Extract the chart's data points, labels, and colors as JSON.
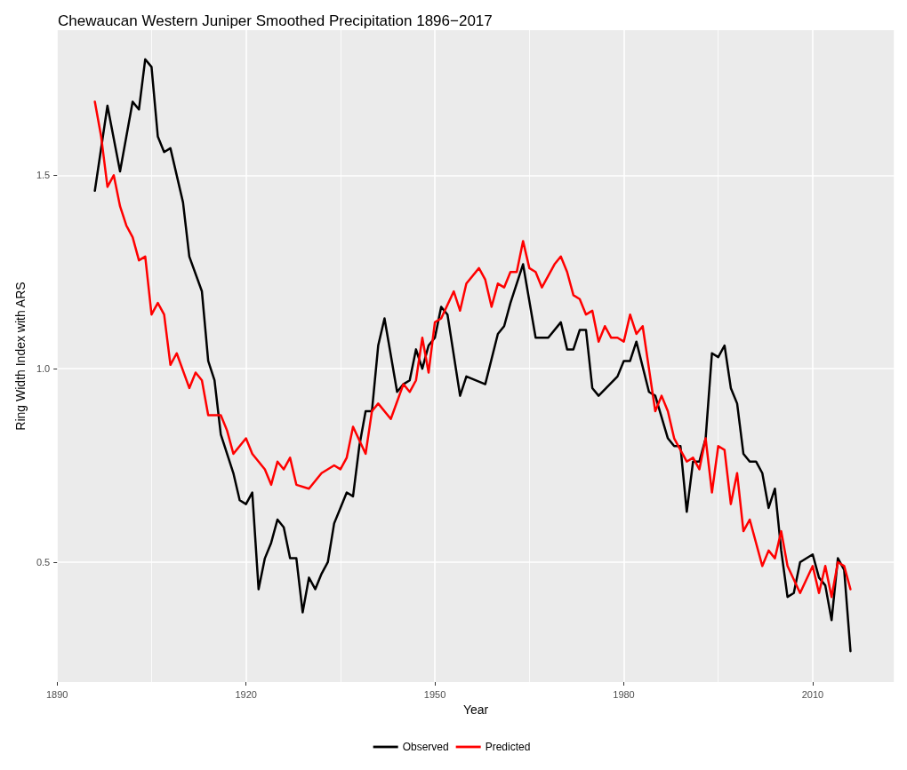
{
  "chart_data": {
    "type": "line",
    "title": "Chewaucan Western Juniper Smoothed Precipitation 1896−2017",
    "xlabel": "Year",
    "ylabel": "Ring Width Index with ARS",
    "xlim": [
      1890,
      2023
    ],
    "xticks": [
      1890,
      1920,
      1950,
      1980,
      2010
    ],
    "ylim": [
      0.19,
      1.875
    ],
    "yticks": [
      {
        "value": 0.5,
        "label": "0.5"
      },
      {
        "value": 1.0,
        "label": "1.0"
      },
      {
        "value": 1.5,
        "label": "1.5"
      }
    ],
    "grid": true,
    "legend": "bottom",
    "marker": "none",
    "line_style": "solid",
    "series": [
      {
        "name": "Observed",
        "color": "#000000",
        "x": [
          1896,
          1898,
          1900,
          1902,
          1903,
          1904,
          1905,
          1906,
          1907,
          1908,
          1910,
          1911,
          1913,
          1914,
          1915,
          1916,
          1918,
          1919,
          1920,
          1921,
          1922,
          1923,
          1924,
          1925,
          1926,
          1927,
          1928,
          1929,
          1930,
          1931,
          1932,
          1933,
          1934,
          1935,
          1936,
          1937,
          1938,
          1939,
          1940,
          1941,
          1942,
          1944,
          1945,
          1946,
          1947,
          1948,
          1949,
          1950,
          1951,
          1952,
          1954,
          1955,
          1958,
          1960,
          1961,
          1962,
          1964,
          1966,
          1968,
          1970,
          1971,
          1972,
          1973,
          1974,
          1975,
          1976,
          1979,
          1980,
          1981,
          1982,
          1984,
          1985,
          1987,
          1988,
          1989,
          1990,
          1991,
          1992,
          1993,
          1994,
          1995,
          1996,
          1997,
          1998,
          1999,
          2000,
          2001,
          2002,
          2003,
          2004,
          2005,
          2006,
          2007,
          2008,
          2010,
          2011,
          2012,
          2013,
          2014,
          2015,
          2016
        ],
        "values": [
          1.46,
          1.68,
          1.51,
          1.69,
          1.67,
          1.8,
          1.78,
          1.6,
          1.56,
          1.57,
          1.43,
          1.29,
          1.2,
          1.02,
          0.97,
          0.83,
          0.73,
          0.66,
          0.65,
          0.68,
          0.43,
          0.51,
          0.55,
          0.61,
          0.59,
          0.51,
          0.51,
          0.37,
          0.46,
          0.43,
          0.47,
          0.5,
          0.6,
          0.64,
          0.68,
          0.67,
          0.8,
          0.89,
          0.89,
          1.06,
          1.13,
          0.94,
          0.96,
          0.97,
          1.05,
          1.0,
          1.06,
          1.08,
          1.16,
          1.14,
          0.93,
          0.98,
          0.96,
          1.09,
          1.11,
          1.17,
          1.27,
          1.08,
          1.08,
          1.12,
          1.05,
          1.05,
          1.1,
          1.1,
          0.95,
          0.93,
          0.98,
          1.02,
          1.02,
          1.07,
          0.94,
          0.93,
          0.82,
          0.8,
          0.8,
          0.63,
          0.76,
          0.76,
          0.82,
          1.04,
          1.03,
          1.06,
          0.95,
          0.91,
          0.78,
          0.76,
          0.76,
          0.73,
          0.64,
          0.69,
          0.53,
          0.41,
          0.42,
          0.5,
          0.52,
          0.46,
          0.44,
          0.35,
          0.51,
          0.48,
          0.27
        ]
      },
      {
        "name": "Predicted",
        "color": "#ff0000",
        "x": [
          1896,
          1897,
          1898,
          1899,
          1900,
          1901,
          1902,
          1903,
          1904,
          1905,
          1906,
          1907,
          1908,
          1909,
          1911,
          1912,
          1913,
          1914,
          1916,
          1917,
          1918,
          1920,
          1921,
          1923,
          1924,
          1925,
          1926,
          1927,
          1928,
          1930,
          1932,
          1934,
          1935,
          1936,
          1937,
          1939,
          1940,
          1941,
          1943,
          1945,
          1946,
          1947,
          1948,
          1949,
          1950,
          1951,
          1953,
          1954,
          1955,
          1957,
          1958,
          1959,
          1960,
          1961,
          1962,
          1963,
          1964,
          1965,
          1966,
          1967,
          1969,
          1970,
          1971,
          1972,
          1973,
          1974,
          1975,
          1976,
          1977,
          1978,
          1979,
          1980,
          1981,
          1982,
          1983,
          1985,
          1986,
          1987,
          1988,
          1990,
          1991,
          1992,
          1993,
          1994,
          1995,
          1996,
          1997,
          1998,
          1999,
          2000,
          2002,
          2003,
          2004,
          2005,
          2006,
          2008,
          2010,
          2011,
          2012,
          2013,
          2014,
          2015,
          2016
        ],
        "values": [
          1.69,
          1.6,
          1.47,
          1.5,
          1.42,
          1.37,
          1.34,
          1.28,
          1.29,
          1.14,
          1.17,
          1.14,
          1.01,
          1.04,
          0.95,
          0.99,
          0.97,
          0.88,
          0.88,
          0.84,
          0.78,
          0.82,
          0.78,
          0.74,
          0.7,
          0.76,
          0.74,
          0.77,
          0.7,
          0.69,
          0.73,
          0.75,
          0.74,
          0.77,
          0.85,
          0.78,
          0.89,
          0.91,
          0.87,
          0.96,
          0.94,
          0.97,
          1.08,
          0.99,
          1.12,
          1.13,
          1.2,
          1.15,
          1.22,
          1.26,
          1.23,
          1.16,
          1.22,
          1.21,
          1.25,
          1.25,
          1.33,
          1.26,
          1.25,
          1.21,
          1.27,
          1.29,
          1.25,
          1.19,
          1.18,
          1.14,
          1.15,
          1.07,
          1.11,
          1.08,
          1.08,
          1.07,
          1.14,
          1.09,
          1.11,
          0.89,
          0.93,
          0.89,
          0.82,
          0.76,
          0.77,
          0.74,
          0.82,
          0.68,
          0.8,
          0.79,
          0.65,
          0.73,
          0.58,
          0.61,
          0.49,
          0.53,
          0.51,
          0.58,
          0.49,
          0.42,
          0.49,
          0.42,
          0.49,
          0.41,
          0.5,
          0.49,
          0.43
        ]
      }
    ]
  }
}
